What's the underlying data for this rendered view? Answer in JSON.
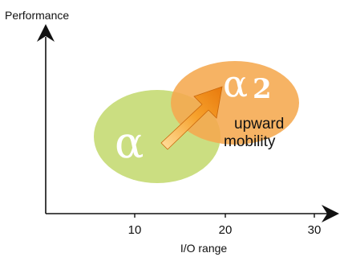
{
  "diagram": {
    "y_axis_label": "Performance",
    "x_axis_label": "I/O range",
    "x_ticks": [
      "10",
      "20",
      "30"
    ],
    "ellipse_1": {
      "label": "α",
      "color": "#c8dc7a"
    },
    "ellipse_2": {
      "label_main": "α",
      "label_sub": "2",
      "color": "#f5a94e"
    },
    "arrow_color": "#f08a12",
    "note_lines": [
      "upward",
      "mobility"
    ]
  }
}
